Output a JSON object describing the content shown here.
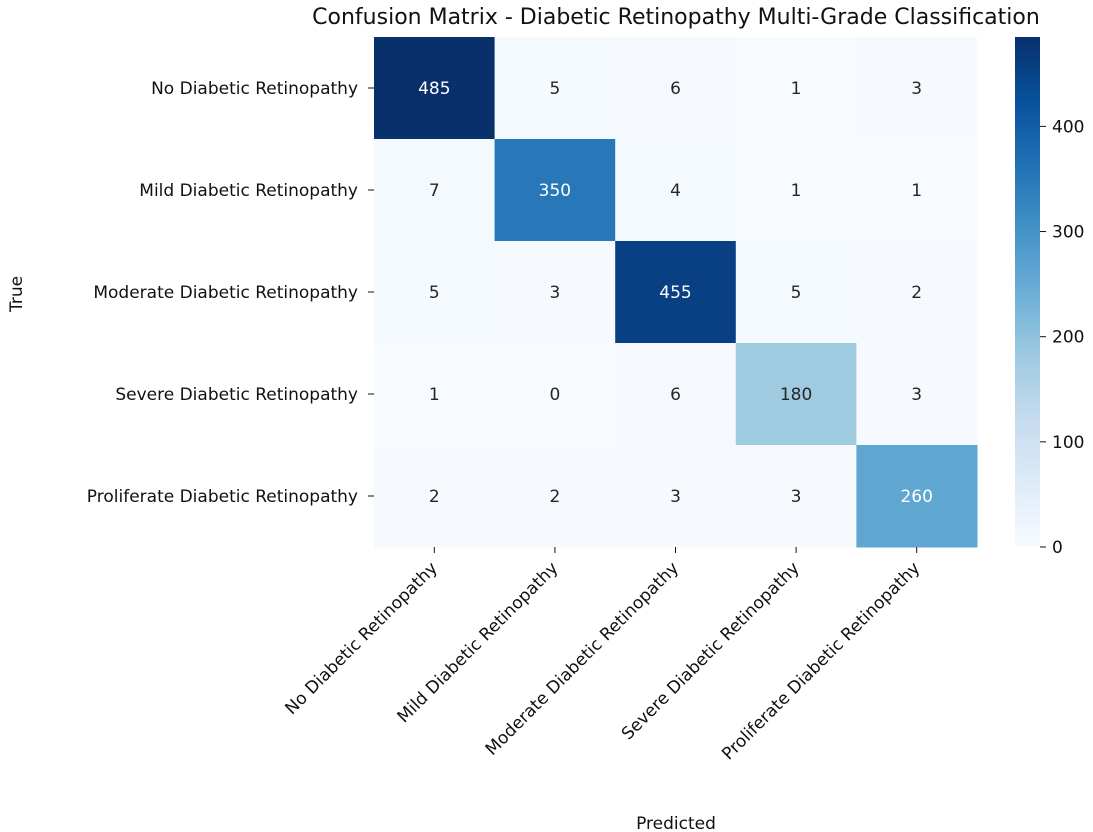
{
  "chart_data": {
    "type": "heatmap",
    "title": "Confusion Matrix - Diabetic Retinopathy Multi-Grade Classification",
    "xlabel": "Predicted",
    "ylabel": "True",
    "row_labels": [
      "No Diabetic Retinopathy",
      "Mild Diabetic Retinopathy",
      "Moderate Diabetic Retinopathy",
      "Severe Diabetic Retinopathy",
      "Proliferate Diabetic Retinopathy"
    ],
    "col_labels": [
      "No Diabetic Retinopathy",
      "Mild Diabetic Retinopathy",
      "Moderate Diabetic Retinopathy",
      "Severe Diabetic Retinopathy",
      "Proliferate Diabetic Retinopathy"
    ],
    "values": [
      [
        485,
        5,
        6,
        1,
        3
      ],
      [
        7,
        350,
        4,
        1,
        1
      ],
      [
        5,
        3,
        455,
        5,
        2
      ],
      [
        1,
        0,
        6,
        180,
        3
      ],
      [
        2,
        2,
        3,
        3,
        260
      ]
    ],
    "colormap": "Blues",
    "colorbar": {
      "range": [
        0,
        485
      ],
      "ticks": [
        0,
        100,
        200,
        300,
        400
      ]
    }
  }
}
